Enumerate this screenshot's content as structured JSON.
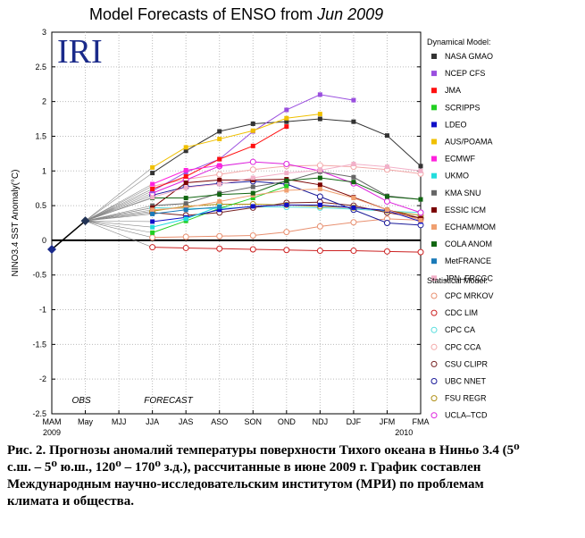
{
  "chart_data": {
    "type": "line",
    "title": "Model Forecasts of ENSO from",
    "title_emph": "Jun 2009",
    "logo": "IRI",
    "ylabel": "NINO3.4 SST Anomaly(°C)",
    "ylim": [
      -2.5,
      3
    ],
    "yticks": [
      -2.5,
      -2,
      -1.5,
      -1,
      -0.5,
      0,
      0.5,
      1,
      1.5,
      2,
      2.5,
      3
    ],
    "categories": [
      "MAM",
      "May",
      "MJJ",
      "JJA",
      "JAS",
      "ASO",
      "SON",
      "OND",
      "NDJ",
      "DJF",
      "JFM",
      "FMA"
    ],
    "year_labels": [
      {
        "at": 0,
        "text": "2009"
      },
      {
        "at": 10.5,
        "text": "2010"
      }
    ],
    "obs_label": "OBS",
    "forecast_label": "FORECAST",
    "observed": [
      {
        "x": 0,
        "y": -0.13
      },
      {
        "x": 1,
        "y": 0.28
      }
    ],
    "dynamical_heading": "Dynamical Model:",
    "statistical_heading": "Statistical Model:",
    "dynamical": [
      {
        "name": "NASA GMAO",
        "color": "#333333",
        "values": [
          0.97,
          1.29,
          1.57,
          1.68,
          1.71,
          1.75,
          1.71,
          1.51,
          1.07
        ]
      },
      {
        "name": "NCEP CFS",
        "color": "#9a4fdf",
        "values": [
          0.71,
          0.98,
          1.17,
          1.57,
          1.88,
          2.1,
          2.02
        ]
      },
      {
        "name": "JMA",
        "color": "#ff1010",
        "values": [
          0.74,
          0.92,
          1.17,
          1.36,
          1.64
        ]
      },
      {
        "name": "SCRIPPS",
        "color": "#22d022",
        "values": [
          0.11,
          0.28,
          0.46,
          0.61,
          0.78
        ]
      },
      {
        "name": "LDEO",
        "color": "#1010c8",
        "values": [
          0.27,
          0.33,
          0.44,
          0.49,
          0.51,
          0.51,
          0.47,
          0.43,
          0.27
        ]
      },
      {
        "name": "AUS/POAMA",
        "color": "#f0c000",
        "values": [
          1.05,
          1.34,
          1.46,
          1.58,
          1.76,
          1.82
        ]
      },
      {
        "name": "ECMWF",
        "color": "#ff22dd",
        "values": [
          0.81,
          1.01,
          1.08
        ]
      },
      {
        "name": "UKMO",
        "color": "#22dddd",
        "values": [
          0.19,
          0.31,
          0.49
        ]
      },
      {
        "name": "KMA SNU",
        "color": "#666666",
        "values": [
          0.5,
          0.53,
          0.68,
          0.77,
          0.85,
          0.99,
          0.91,
          0.64,
          0.59
        ]
      },
      {
        "name": "ESSIC ICM",
        "color": "#7a0000",
        "values": [
          0.47,
          0.83,
          0.87,
          0.87,
          0.88,
          0.8,
          0.62,
          0.44,
          0.32
        ]
      },
      {
        "name": "ECHAM/MOM",
        "color": "#f0a070",
        "values": [
          0.44,
          0.47,
          0.56,
          0.65,
          0.72,
          0.74,
          0.61,
          0.44,
          0.29
        ]
      },
      {
        "name": "COLA ANOM",
        "color": "#116611",
        "values": [
          0.61,
          0.61,
          0.66,
          0.68,
          0.86,
          0.9,
          0.84,
          0.63,
          0.59
        ]
      },
      {
        "name": "MetFRANCE",
        "color": "#1a7ab8",
        "values": [
          0.38,
          0.44,
          0.48
        ]
      },
      {
        "name": "JPN–FRCGC",
        "color": "#f2b0c8",
        "values": [
          0.62,
          0.76,
          0.81,
          0.9,
          0.97,
          1.01,
          1.1,
          1.06,
          1.0
        ]
      }
    ],
    "statistical": [
      {
        "name": "CPC MRKOV",
        "color": "#e89070",
        "values": [
          0.04,
          0.05,
          0.06,
          0.07,
          0.12,
          0.2,
          0.26,
          0.31,
          0.29
        ]
      },
      {
        "name": "CDC LIM",
        "color": "#cc2222",
        "values": [
          -0.1,
          -0.11,
          -0.12,
          -0.13,
          -0.14,
          -0.15,
          -0.15,
          -0.16,
          -0.17
        ]
      },
      {
        "name": "CPC CA",
        "color": "#55dddd",
        "values": [
          0.47,
          0.46,
          0.46,
          0.48,
          0.48,
          0.47,
          0.45,
          0.42,
          0.4
        ]
      },
      {
        "name": "CPC CCA",
        "color": "#f3a8a8",
        "values": [
          0.78,
          0.88,
          0.95,
          1.02,
          1.07,
          1.08,
          1.06,
          1.02,
          0.96
        ]
      },
      {
        "name": "CSU CLIPR",
        "color": "#772222",
        "values": [
          0.4,
          0.36,
          0.4,
          0.47,
          0.54,
          0.55,
          0.5,
          0.4,
          0.32
        ]
      },
      {
        "name": "UBC NNET",
        "color": "#1a1a99",
        "values": [
          0.65,
          0.77,
          0.82,
          0.85,
          0.81,
          0.63,
          0.44,
          0.25,
          0.22
        ]
      },
      {
        "name": "FSU REGR",
        "color": "#b09018",
        "values": [
          0.42,
          0.49,
          0.52,
          0.52,
          0.51,
          0.49,
          0.47,
          0.43,
          0.36
        ]
      },
      {
        "name": "UCLA–TCD",
        "color": "#dd22dd",
        "values": [
          0.68,
          0.87,
          1.07,
          1.13,
          1.1,
          1.0,
          0.82,
          0.56,
          0.4
        ]
      }
    ]
  },
  "caption": {
    "lines": [
      "Рис.  2.  Прогнозы аномалий температуры поверхности Тихого океана в Ниньо 3.4 (5⁰",
      "с.ш. – 5⁰ ю.ш., 120⁰ – 170⁰ з.д.), рассчитанные в июне 2009 г. График составлен",
      "Международным научно-исследовательским институтом (МРИ) по проблемам",
      "климата и общества."
    ]
  }
}
